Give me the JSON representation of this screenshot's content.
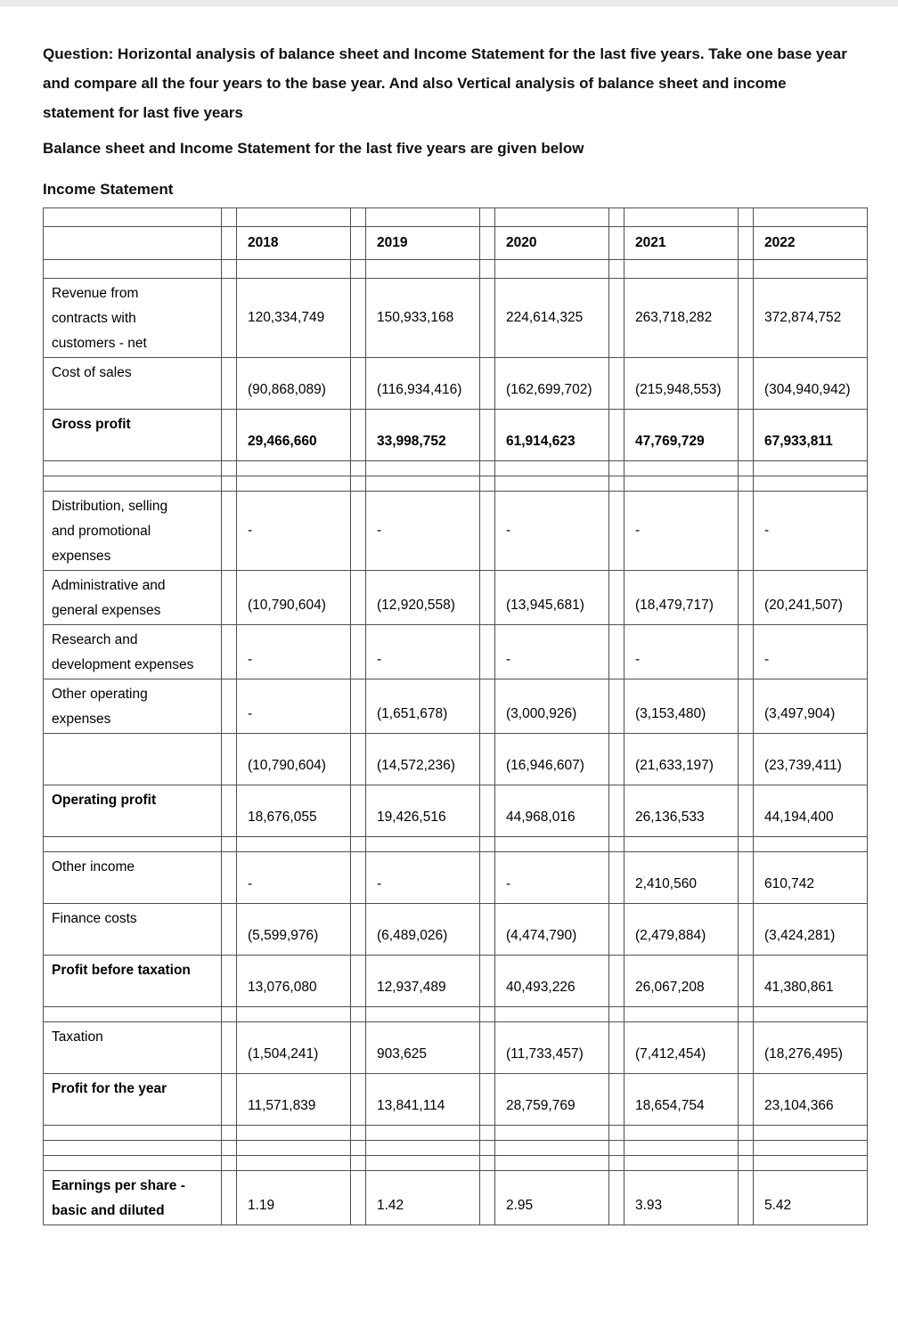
{
  "page": {
    "question": "Question: Horizontal analysis of balance sheet and Income Statement for the last five years. Take one base year and compare all the four years to the base year. And also Vertical analysis of balance sheet and income statement for last five years",
    "intro": "Balance sheet and Income Statement for the last five years are given below",
    "section_title": "Income Statement"
  },
  "income_statement": {
    "columns": [
      "2018",
      "2019",
      "2020",
      "2021",
      "2022"
    ],
    "rows": [
      {
        "label": "Revenue from\ncontracts with\ncustomers - net",
        "middle": true,
        "values": [
          "120,334,749",
          "150,933,168",
          "224,614,325",
          "263,718,282",
          "372,874,752"
        ]
      },
      {
        "label": "Cost of sales",
        "values": [
          "(90,868,089)",
          "(116,934,416)",
          "(162,699,702)",
          "(215,948,553)",
          "(304,940,942)"
        ]
      },
      {
        "label": "Gross profit",
        "bold": true,
        "bold_values": true,
        "values": [
          "29,466,660",
          "33,998,752",
          "61,914,623",
          "47,769,729",
          "67,933,811"
        ]
      },
      {
        "type": "spacer"
      },
      {
        "type": "spacer"
      },
      {
        "label": "Distribution, selling\nand promotional\nexpenses",
        "middle": true,
        "values": [
          "-",
          "-",
          "-",
          "-",
          "-"
        ]
      },
      {
        "label": "Administrative and\ngeneral expenses",
        "values": [
          "(10,790,604)",
          "(12,920,558)",
          "(13,945,681)",
          "(18,479,717)",
          "(20,241,507)"
        ]
      },
      {
        "label": "Research and\ndevelopment expenses",
        "values": [
          "-",
          "-",
          "-",
          "-",
          "-"
        ]
      },
      {
        "label": "Other operating\nexpenses",
        "values": [
          "-",
          "(1,651,678)",
          "(3,000,926)",
          "(3,153,480)",
          "(3,497,904)"
        ]
      },
      {
        "label": "",
        "values": [
          "(10,790,604)",
          "(14,572,236)",
          "(16,946,607)",
          "(21,633,197)",
          "(23,739,411)"
        ]
      },
      {
        "label": "Operating profit",
        "bold": true,
        "values": [
          "18,676,055",
          "19,426,516",
          "44,968,016",
          "26,136,533",
          "44,194,400"
        ]
      },
      {
        "type": "spacer"
      },
      {
        "label": "Other income",
        "values": [
          "-",
          "-",
          "-",
          "2,410,560",
          "610,742"
        ]
      },
      {
        "label": "Finance costs",
        "values": [
          "(5,599,976)",
          "(6,489,026)",
          "(4,474,790)",
          "(2,479,884)",
          "(3,424,281)"
        ]
      },
      {
        "label": "Profit before taxation",
        "bold": true,
        "values": [
          "13,076,080",
          "12,937,489",
          "40,493,226",
          "26,067,208",
          "41,380,861"
        ]
      },
      {
        "type": "spacer"
      },
      {
        "label": "Taxation",
        "values": [
          "(1,504,241)",
          "903,625",
          "(11,733,457)",
          "(7,412,454)",
          "(18,276,495)"
        ]
      },
      {
        "label": "Profit for the year",
        "bold": true,
        "values": [
          "11,571,839",
          "13,841,114",
          "28,759,769",
          "18,654,754",
          "23,104,366"
        ]
      },
      {
        "type": "spacer"
      },
      {
        "type": "spacer"
      },
      {
        "type": "spacer"
      },
      {
        "label": "Earnings per share -\nbasic and diluted",
        "bold": true,
        "values": [
          "1.19",
          "1.42",
          "2.95",
          "3.93",
          "5.42"
        ]
      }
    ]
  }
}
